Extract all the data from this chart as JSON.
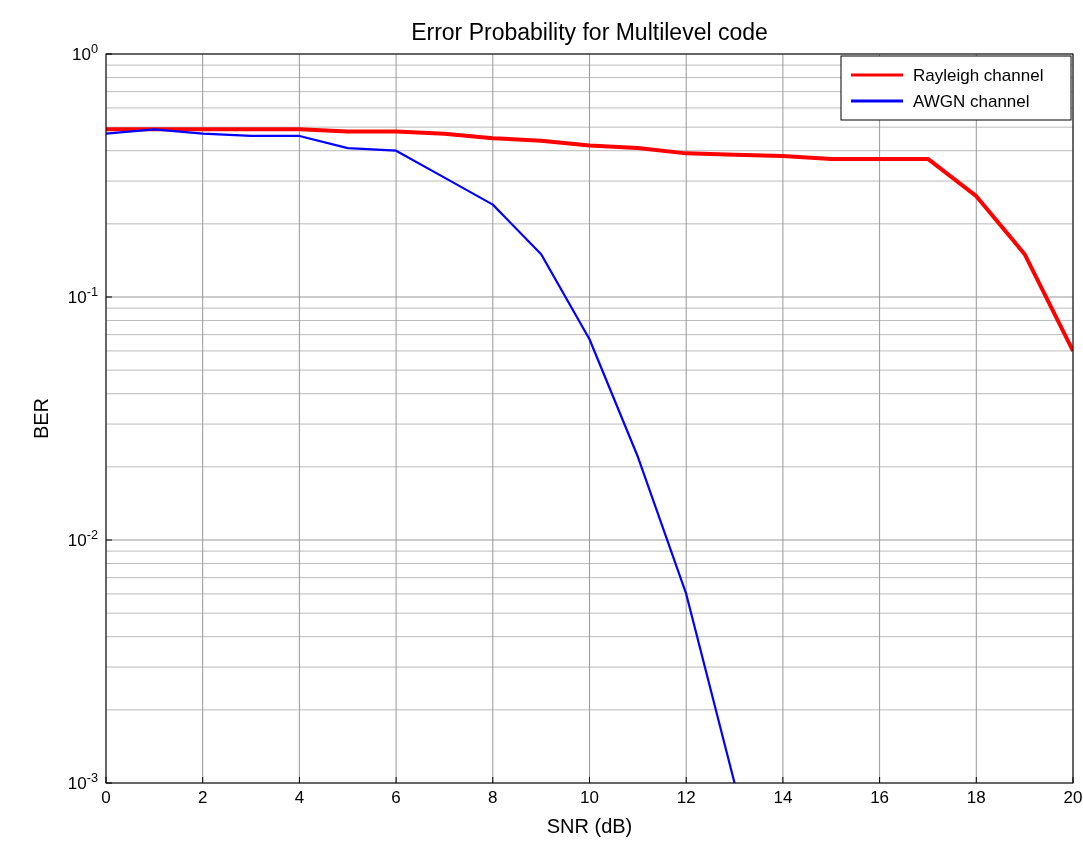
{
  "chart_data": {
    "type": "line",
    "title": "Error Probability for Multilevel code",
    "xlabel": "SNR (dB)",
    "ylabel": "BER",
    "log": "y",
    "grid": true,
    "legend": "top right",
    "line_style": "solid",
    "marker": "none",
    "x": [
      0,
      1,
      2,
      3,
      4,
      5,
      6,
      7,
      8,
      9,
      10,
      11,
      12,
      13,
      14,
      15,
      16,
      17,
      18,
      19,
      20
    ],
    "xlim": [
      0,
      20
    ],
    "xticks": [
      0,
      2,
      4,
      6,
      8,
      10,
      12,
      14,
      16,
      18,
      20
    ],
    "ylim": [
      0.001,
      1
    ],
    "yticks": [
      {
        "value": 0.001,
        "label": "10$^{-3}$"
      },
      {
        "value": 0.01,
        "label": "10$^{-2}$"
      },
      {
        "value": 0.1,
        "label": "10$^{-1}$"
      },
      {
        "value": 1,
        "label": "10$^{0}$"
      }
    ],
    "series": [
      {
        "name": "Rayleigh channel",
        "color": "#ff0000",
        "values": [
          0.49,
          0.49,
          0.49,
          0.49,
          0.49,
          0.48,
          0.48,
          0.47,
          0.45,
          0.44,
          0.42,
          0.41,
          0.39,
          0.385,
          0.38,
          0.37,
          0.37,
          0.37,
          0.26,
          0.15,
          0.06
        ]
      },
      {
        "name": "AWGN channel",
        "color": "#0000ff",
        "x": [
          0,
          1,
          2,
          3,
          4,
          5,
          6,
          7,
          8,
          9,
          10,
          11,
          12,
          13
        ],
        "values": [
          0.47,
          0.49,
          0.47,
          0.46,
          0.46,
          0.41,
          0.4,
          0.31,
          0.24,
          0.15,
          0.067,
          0.022,
          0.006,
          0.001
        ]
      }
    ]
  }
}
